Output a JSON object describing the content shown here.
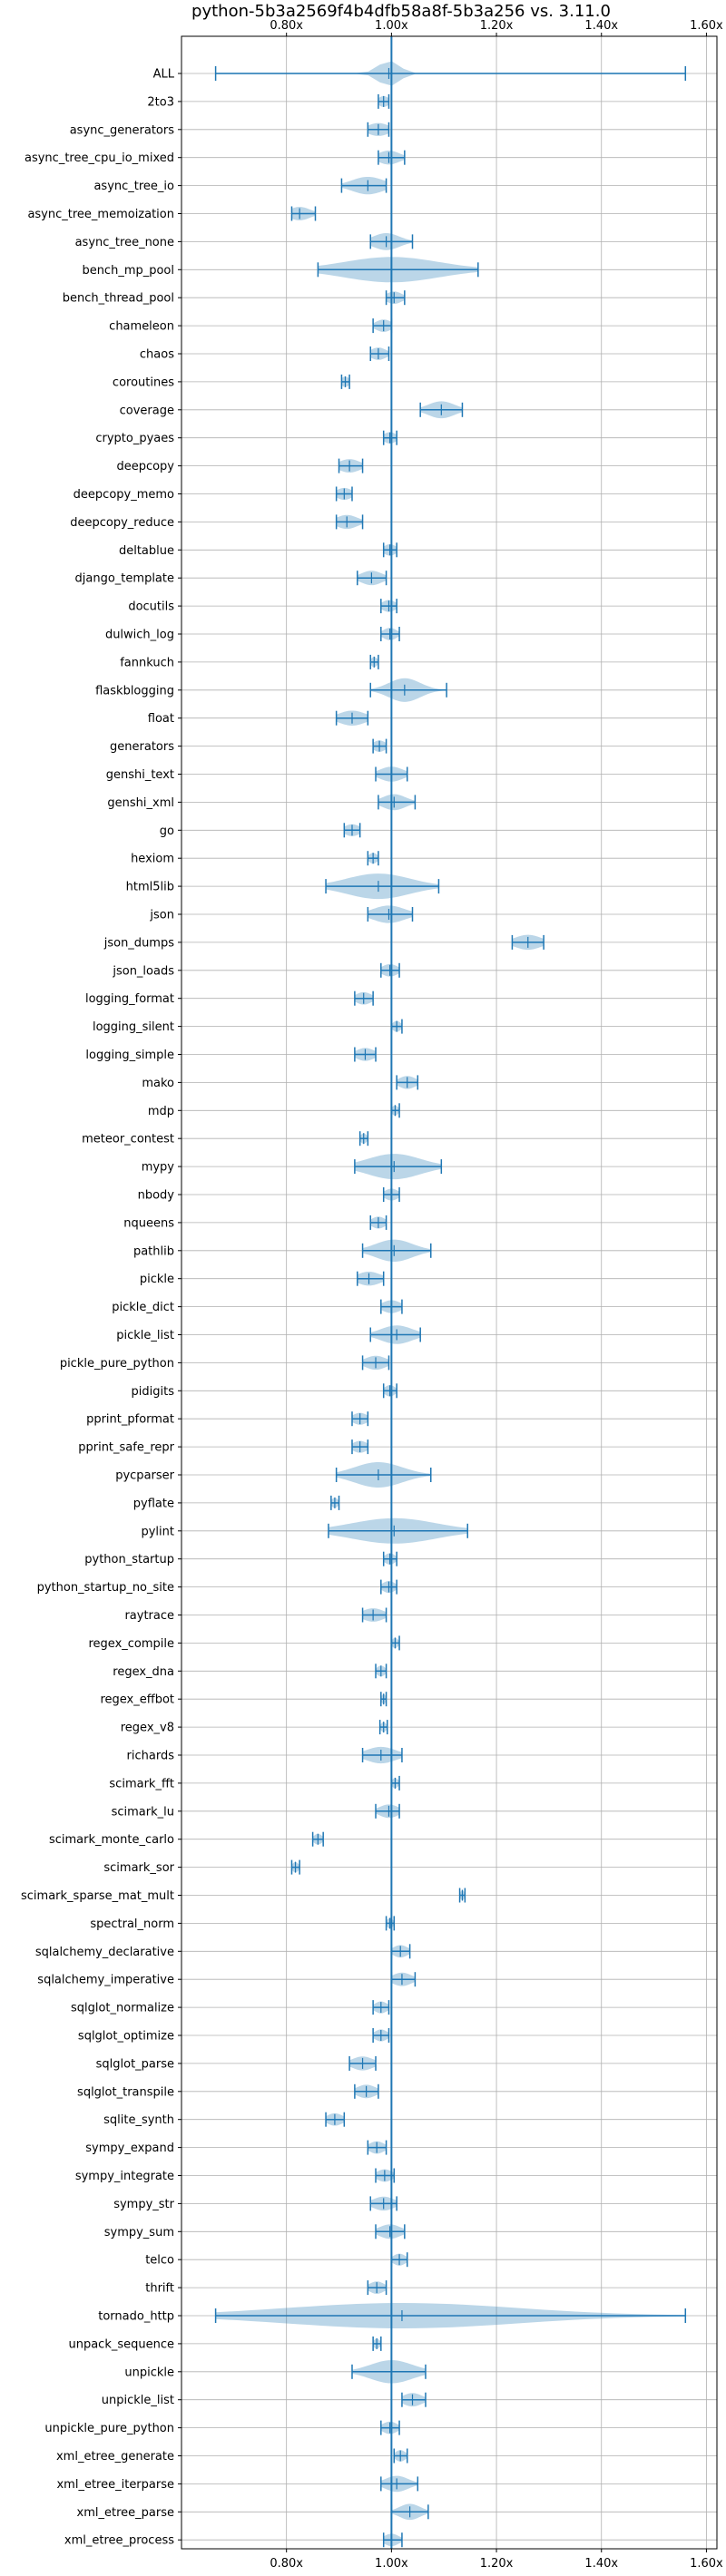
{
  "chart_data": {
    "type": "violin",
    "title": "python-5b3a2569f4b4dfb58a8f-5b3a256 vs. 3.11.0",
    "xlabel": "",
    "ylabel": "",
    "orientation": "horizontal",
    "xlim": [
      0.6,
      1.62
    ],
    "reference_line": 1.0,
    "grid": true,
    "x_ticks": [
      0.8,
      1.0,
      1.2,
      1.4,
      1.6
    ],
    "x_tick_labels": [
      "0.80x",
      "1.00x",
      "1.20x",
      "1.40x",
      "1.60x"
    ],
    "series": [
      {
        "label": "ALL",
        "min": 0.665,
        "max": 1.56,
        "median": 0.995,
        "spread": 0.02
      },
      {
        "label": "2to3",
        "min": 0.975,
        "max": 0.995,
        "median": 0.985,
        "spread": 0.01
      },
      {
        "label": "async_generators",
        "min": 0.955,
        "max": 0.995,
        "median": 0.975,
        "spread": 0.02
      },
      {
        "label": "async_tree_cpu_io_mixed",
        "min": 0.975,
        "max": 1.025,
        "median": 0.995,
        "spread": 0.02
      },
      {
        "label": "async_tree_io",
        "min": 0.905,
        "max": 0.99,
        "median": 0.955,
        "spread": 0.03
      },
      {
        "label": "async_tree_memoization",
        "min": 0.81,
        "max": 0.855,
        "median": 0.825,
        "spread": 0.02
      },
      {
        "label": "async_tree_none",
        "min": 0.96,
        "max": 1.04,
        "median": 0.99,
        "spread": 0.025
      },
      {
        "label": "bench_mp_pool",
        "min": 0.86,
        "max": 1.165,
        "median": 1.0,
        "spread": 0.09
      },
      {
        "label": "bench_thread_pool",
        "min": 0.99,
        "max": 1.025,
        "median": 1.005,
        "spread": 0.015
      },
      {
        "label": "chameleon",
        "min": 0.965,
        "max": 1.0,
        "median": 0.985,
        "spread": 0.015
      },
      {
        "label": "chaos",
        "min": 0.96,
        "max": 0.995,
        "median": 0.975,
        "spread": 0.015
      },
      {
        "label": "coroutines",
        "min": 0.905,
        "max": 0.92,
        "median": 0.912,
        "spread": 0.008
      },
      {
        "label": "coverage",
        "min": 1.055,
        "max": 1.135,
        "median": 1.095,
        "spread": 0.025
      },
      {
        "label": "crypto_pyaes",
        "min": 0.985,
        "max": 1.01,
        "median": 0.997,
        "spread": 0.012
      },
      {
        "label": "deepcopy",
        "min": 0.9,
        "max": 0.945,
        "median": 0.92,
        "spread": 0.02
      },
      {
        "label": "deepcopy_memo",
        "min": 0.895,
        "max": 0.925,
        "median": 0.91,
        "spread": 0.015
      },
      {
        "label": "deepcopy_reduce",
        "min": 0.895,
        "max": 0.945,
        "median": 0.915,
        "spread": 0.02
      },
      {
        "label": "deltablue",
        "min": 0.985,
        "max": 1.01,
        "median": 0.997,
        "spread": 0.012
      },
      {
        "label": "django_template",
        "min": 0.935,
        "max": 0.99,
        "median": 0.962,
        "spread": 0.02
      },
      {
        "label": "docutils",
        "min": 0.98,
        "max": 1.01,
        "median": 0.995,
        "spread": 0.013
      },
      {
        "label": "dulwich_log",
        "min": 0.98,
        "max": 1.015,
        "median": 0.997,
        "spread": 0.013
      },
      {
        "label": "fannkuch",
        "min": 0.96,
        "max": 0.975,
        "median": 0.967,
        "spread": 0.006
      },
      {
        "label": "flaskblogging",
        "min": 0.96,
        "max": 1.105,
        "median": 1.025,
        "spread": 0.03
      },
      {
        "label": "float",
        "min": 0.895,
        "max": 0.955,
        "median": 0.925,
        "spread": 0.025
      },
      {
        "label": "generators",
        "min": 0.965,
        "max": 0.99,
        "median": 0.977,
        "spread": 0.012
      },
      {
        "label": "genshi_text",
        "min": 0.97,
        "max": 1.03,
        "median": 1.0,
        "spread": 0.022
      },
      {
        "label": "genshi_xml",
        "min": 0.975,
        "max": 1.045,
        "median": 1.005,
        "spread": 0.022
      },
      {
        "label": "go",
        "min": 0.91,
        "max": 0.94,
        "median": 0.925,
        "spread": 0.015
      },
      {
        "label": "hexiom",
        "min": 0.955,
        "max": 0.975,
        "median": 0.965,
        "spread": 0.008
      },
      {
        "label": "html5lib",
        "min": 0.875,
        "max": 1.09,
        "median": 0.975,
        "spread": 0.06
      },
      {
        "label": "json",
        "min": 0.955,
        "max": 1.04,
        "median": 0.995,
        "spread": 0.03
      },
      {
        "label": "json_dumps",
        "min": 1.23,
        "max": 1.29,
        "median": 1.26,
        "spread": 0.025
      },
      {
        "label": "json_loads",
        "min": 0.98,
        "max": 1.015,
        "median": 0.997,
        "spread": 0.015
      },
      {
        "label": "logging_format",
        "min": 0.93,
        "max": 0.965,
        "median": 0.947,
        "spread": 0.015
      },
      {
        "label": "logging_silent",
        "min": 1.0,
        "max": 1.02,
        "median": 1.01,
        "spread": 0.008
      },
      {
        "label": "logging_simple",
        "min": 0.93,
        "max": 0.97,
        "median": 0.95,
        "spread": 0.017
      },
      {
        "label": "mako",
        "min": 1.01,
        "max": 1.05,
        "median": 1.03,
        "spread": 0.016
      },
      {
        "label": "mdp",
        "min": 1.0,
        "max": 1.015,
        "median": 1.007,
        "spread": 0.006
      },
      {
        "label": "meteor_contest",
        "min": 0.94,
        "max": 0.955,
        "median": 0.947,
        "spread": 0.006
      },
      {
        "label": "mypy",
        "min": 0.93,
        "max": 1.095,
        "median": 1.005,
        "spread": 0.05
      },
      {
        "label": "nbody",
        "min": 0.985,
        "max": 1.015,
        "median": 1.0,
        "spread": 0.013
      },
      {
        "label": "nqueens",
        "min": 0.96,
        "max": 0.99,
        "median": 0.975,
        "spread": 0.013
      },
      {
        "label": "pathlib",
        "min": 0.945,
        "max": 1.075,
        "median": 1.005,
        "spread": 0.035
      },
      {
        "label": "pickle",
        "min": 0.935,
        "max": 0.985,
        "median": 0.957,
        "spread": 0.022
      },
      {
        "label": "pickle_dict",
        "min": 0.98,
        "max": 1.02,
        "median": 1.0,
        "spread": 0.017
      },
      {
        "label": "pickle_list",
        "min": 0.96,
        "max": 1.055,
        "median": 1.01,
        "spread": 0.03
      },
      {
        "label": "pickle_pure_python",
        "min": 0.945,
        "max": 0.995,
        "median": 0.97,
        "spread": 0.02
      },
      {
        "label": "pidigits",
        "min": 0.985,
        "max": 1.01,
        "median": 0.997,
        "spread": 0.01
      },
      {
        "label": "pprint_pformat",
        "min": 0.925,
        "max": 0.955,
        "median": 0.94,
        "spread": 0.014
      },
      {
        "label": "pprint_safe_repr",
        "min": 0.925,
        "max": 0.955,
        "median": 0.94,
        "spread": 0.014
      },
      {
        "label": "pycparser",
        "min": 0.895,
        "max": 1.075,
        "median": 0.975,
        "spread": 0.045
      },
      {
        "label": "pyflate",
        "min": 0.885,
        "max": 0.9,
        "median": 0.892,
        "spread": 0.006
      },
      {
        "label": "pylint",
        "min": 0.88,
        "max": 1.145,
        "median": 1.005,
        "spread": 0.08
      },
      {
        "label": "python_startup",
        "min": 0.985,
        "max": 1.01,
        "median": 0.997,
        "spread": 0.01
      },
      {
        "label": "python_startup_no_site",
        "min": 0.98,
        "max": 1.01,
        "median": 0.995,
        "spread": 0.012
      },
      {
        "label": "raytrace",
        "min": 0.945,
        "max": 0.99,
        "median": 0.965,
        "spread": 0.02
      },
      {
        "label": "regex_compile",
        "min": 1.0,
        "max": 1.015,
        "median": 1.007,
        "spread": 0.006
      },
      {
        "label": "regex_dna",
        "min": 0.97,
        "max": 0.99,
        "median": 0.98,
        "spread": 0.008
      },
      {
        "label": "regex_effbot",
        "min": 0.98,
        "max": 0.99,
        "median": 0.985,
        "spread": 0.004
      },
      {
        "label": "regex_v8",
        "min": 0.978,
        "max": 0.992,
        "median": 0.985,
        "spread": 0.005
      },
      {
        "label": "richards",
        "min": 0.945,
        "max": 1.02,
        "median": 0.98,
        "spread": 0.028
      },
      {
        "label": "scimark_fft",
        "min": 1.0,
        "max": 1.015,
        "median": 1.007,
        "spread": 0.006
      },
      {
        "label": "scimark_lu",
        "min": 0.97,
        "max": 1.015,
        "median": 0.995,
        "spread": 0.018
      },
      {
        "label": "scimark_monte_carlo",
        "min": 0.85,
        "max": 0.87,
        "median": 0.86,
        "spread": 0.008
      },
      {
        "label": "scimark_sor",
        "min": 0.81,
        "max": 0.825,
        "median": 0.817,
        "spread": 0.006
      },
      {
        "label": "scimark_sparse_mat_mult",
        "min": 1.13,
        "max": 1.14,
        "median": 1.135,
        "spread": 0.004
      },
      {
        "label": "spectral_norm",
        "min": 0.99,
        "max": 1.005,
        "median": 0.997,
        "spread": 0.006
      },
      {
        "label": "sqlalchemy_declarative",
        "min": 1.0,
        "max": 1.035,
        "median": 1.017,
        "spread": 0.014
      },
      {
        "label": "sqlalchemy_imperative",
        "min": 1.0,
        "max": 1.045,
        "median": 1.02,
        "spread": 0.018
      },
      {
        "label": "sqlglot_normalize",
        "min": 0.965,
        "max": 0.995,
        "median": 0.98,
        "spread": 0.012
      },
      {
        "label": "sqlglot_optimize",
        "min": 0.965,
        "max": 0.995,
        "median": 0.98,
        "spread": 0.012
      },
      {
        "label": "sqlglot_parse",
        "min": 0.92,
        "max": 0.97,
        "median": 0.945,
        "spread": 0.02
      },
      {
        "label": "sqlglot_transpile",
        "min": 0.93,
        "max": 0.975,
        "median": 0.952,
        "spread": 0.018
      },
      {
        "label": "sqlite_synth",
        "min": 0.875,
        "max": 0.91,
        "median": 0.892,
        "spread": 0.015
      },
      {
        "label": "sympy_expand",
        "min": 0.955,
        "max": 0.99,
        "median": 0.972,
        "spread": 0.014
      },
      {
        "label": "sympy_integrate",
        "min": 0.97,
        "max": 1.005,
        "median": 0.987,
        "spread": 0.015
      },
      {
        "label": "sympy_str",
        "min": 0.96,
        "max": 1.01,
        "median": 0.985,
        "spread": 0.02
      },
      {
        "label": "sympy_sum",
        "min": 0.97,
        "max": 1.025,
        "median": 0.997,
        "spread": 0.02
      },
      {
        "label": "telco",
        "min": 1.0,
        "max": 1.03,
        "median": 1.015,
        "spread": 0.012
      },
      {
        "label": "thrift",
        "min": 0.955,
        "max": 0.99,
        "median": 0.972,
        "spread": 0.014
      },
      {
        "label": "tornado_http",
        "min": 0.665,
        "max": 1.56,
        "median": 1.02,
        "spread": 0.22
      },
      {
        "label": "unpack_sequence",
        "min": 0.965,
        "max": 0.98,
        "median": 0.972,
        "spread": 0.006
      },
      {
        "label": "unpickle",
        "min": 0.925,
        "max": 1.065,
        "median": 1.0,
        "spread": 0.04
      },
      {
        "label": "unpickle_list",
        "min": 1.02,
        "max": 1.065,
        "median": 1.04,
        "spread": 0.018
      },
      {
        "label": "unpickle_pure_python",
        "min": 0.98,
        "max": 1.015,
        "median": 0.997,
        "spread": 0.014
      },
      {
        "label": "xml_etree_generate",
        "min": 1.005,
        "max": 1.03,
        "median": 1.017,
        "spread": 0.01
      },
      {
        "label": "xml_etree_iterparse",
        "min": 0.98,
        "max": 1.05,
        "median": 1.01,
        "spread": 0.022
      },
      {
        "label": "xml_etree_parse",
        "min": 1.0,
        "max": 1.07,
        "median": 1.035,
        "spread": 0.02
      },
      {
        "label": "xml_etree_process",
        "min": 0.985,
        "max": 1.02,
        "median": 1.0,
        "spread": 0.014
      }
    ]
  }
}
